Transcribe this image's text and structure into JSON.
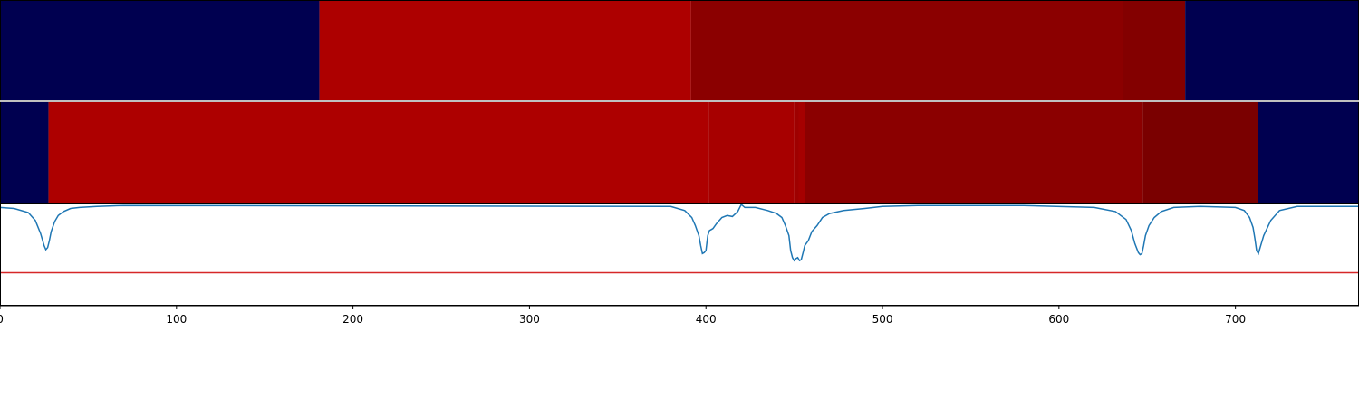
{
  "chart_data": [
    {
      "type": "heatmap",
      "x_range": [
        0,
        770
      ],
      "segments": [
        {
          "start": 0,
          "end": 181,
          "color": "#000050"
        },
        {
          "start": 181,
          "end": 391.5,
          "color": "#ad0000"
        },
        {
          "start": 391.5,
          "end": 636.5,
          "color": "#8b0000"
        },
        {
          "start": 636.5,
          "end": 671.5,
          "color": "#830000"
        },
        {
          "start": 671.5,
          "end": 770,
          "color": "#000050"
        }
      ]
    },
    {
      "type": "heatmap",
      "x_range": [
        0,
        770
      ],
      "segments": [
        {
          "start": 0,
          "end": 27.5,
          "color": "#000050"
        },
        {
          "start": 27.5,
          "end": 401.5,
          "color": "#ad0000"
        },
        {
          "start": 401.5,
          "end": 450,
          "color": "#a70000"
        },
        {
          "start": 450,
          "end": 452.5,
          "color": "#9e0000"
        },
        {
          "start": 452.5,
          "end": 456,
          "color": "#a50000"
        },
        {
          "start": 456,
          "end": 647.5,
          "color": "#8b0000"
        },
        {
          "start": 647.5,
          "end": 713,
          "color": "#7a0000"
        },
        {
          "start": 713,
          "end": 770,
          "color": "#000050"
        }
      ]
    },
    {
      "type": "line",
      "xlim": [
        0,
        770
      ],
      "ylim": [
        -1,
        0.02
      ],
      "threshold": -0.67,
      "series_color": "#1f77b4",
      "threshold_color": "#d62728",
      "x": [
        0,
        8,
        16,
        20,
        23,
        25,
        26,
        27,
        28,
        29,
        31,
        33,
        36,
        40,
        45,
        55,
        70,
        380,
        388,
        392,
        394,
        396,
        397,
        398,
        399,
        400,
        401,
        402,
        403,
        404,
        406,
        409,
        412,
        415,
        418,
        420,
        422,
        428,
        435,
        440,
        443,
        445,
        447,
        448,
        449,
        450,
        451,
        452,
        453,
        454,
        455,
        456,
        458,
        460,
        463,
        466,
        470,
        478,
        490,
        500,
        520,
        580,
        620,
        632,
        638,
        641,
        643,
        645,
        646,
        647,
        648,
        649,
        651,
        654,
        658,
        665,
        680,
        700,
        705,
        708,
        710,
        711,
        712,
        713,
        714,
        716,
        720,
        725,
        735,
        770
      ],
      "y": [
        -0.02,
        -0.03,
        -0.07,
        -0.15,
        -0.28,
        -0.4,
        -0.44,
        -0.42,
        -0.35,
        -0.26,
        -0.16,
        -0.1,
        -0.06,
        -0.03,
        -0.02,
        -0.01,
        0,
        -0.01,
        -0.05,
        -0.12,
        -0.2,
        -0.3,
        -0.4,
        -0.48,
        -0.47,
        -0.45,
        -0.3,
        -0.25,
        -0.24,
        -0.23,
        -0.18,
        -0.12,
        -0.1,
        -0.11,
        -0.06,
        0.01,
        -0.02,
        -0.02,
        -0.05,
        -0.08,
        -0.12,
        -0.2,
        -0.3,
        -0.45,
        -0.52,
        -0.55,
        -0.53,
        -0.52,
        -0.55,
        -0.54,
        -0.47,
        -0.4,
        -0.35,
        -0.26,
        -0.2,
        -0.12,
        -0.08,
        -0.05,
        -0.03,
        -0.01,
        0,
        0,
        -0.02,
        -0.06,
        -0.14,
        -0.25,
        -0.38,
        -0.47,
        -0.49,
        -0.48,
        -0.4,
        -0.3,
        -0.2,
        -0.12,
        -0.06,
        -0.02,
        -0.01,
        -0.02,
        -0.05,
        -0.12,
        -0.22,
        -0.33,
        -0.45,
        -0.48,
        -0.42,
        -0.3,
        -0.15,
        -0.05,
        -0.01,
        -0.01
      ]
    }
  ],
  "x_axis": {
    "ticks": [
      0,
      100,
      200,
      300,
      400,
      500,
      600,
      700
    ],
    "tick_labels": [
      "0",
      "100",
      "200",
      "300",
      "400",
      "500",
      "600",
      "700"
    ]
  }
}
